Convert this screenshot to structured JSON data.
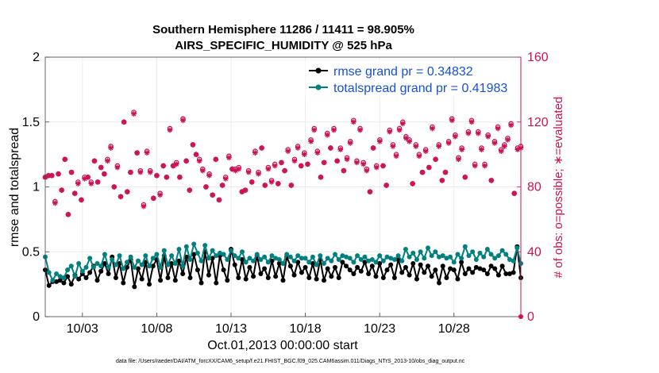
{
  "chart_data": {
    "type": "line",
    "title": "Southern Hemisphere 11286 / 11411 = 98.905%",
    "subtitle": "AIRS_SPECIFIC_HUMIDITY @ 525 hPa",
    "xlabel": "Oct.01,2013 00:00:00 start",
    "ylabel": "rmse and totalspread",
    "y2label": "# of obs: o=possible; ∗=evaluated",
    "footnote": "data file: /Users/raeder/DAI/ATM_forcXX/CAM6_setup/f.e21.FHIST_BGC.f09_025.CAM6assim.011/Diags_NTrS_2013-10/obs_diag_output.nc",
    "xlim": [
      0.5,
      32.5
    ],
    "ylim": [
      0,
      2
    ],
    "y2lim": [
      0,
      160
    ],
    "x_ticks": [
      {
        "x": 3,
        "label": "10/03"
      },
      {
        "x": 8,
        "label": "10/08"
      },
      {
        "x": 13,
        "label": "10/13"
      },
      {
        "x": 18,
        "label": "10/18"
      },
      {
        "x": 23,
        "label": "10/23"
      },
      {
        "x": 28,
        "label": "10/28"
      }
    ],
    "y_ticks": [
      "0",
      "0.5",
      "1",
      "1.5",
      "2"
    ],
    "y2_ticks": [
      "0",
      "40",
      "80",
      "120",
      "160"
    ],
    "legend_position": "top-right",
    "colors": {
      "rmse": "#000000",
      "spread": "#00807f",
      "obs": "#cc1155",
      "grid": "#ebebeb"
    },
    "series": [
      {
        "name": "rmse grand pr = 0.34832",
        "key": "rmse",
        "values": [
          0.36,
          0.24,
          0.27,
          0.27,
          0.28,
          0.26,
          0.31,
          0.25,
          0.32,
          0.29,
          0.33,
          0.3,
          0.34,
          0.39,
          0.28,
          0.35,
          0.41,
          0.33,
          0.46,
          0.3,
          0.41,
          0.26,
          0.38,
          0.44,
          0.23,
          0.37,
          0.29,
          0.42,
          0.25,
          0.39,
          0.44,
          0.28,
          0.47,
          0.3,
          0.41,
          0.28,
          0.43,
          0.33,
          0.46,
          0.3,
          0.48,
          0.36,
          0.26,
          0.5,
          0.32,
          0.45,
          0.26,
          0.47,
          0.36,
          0.28,
          0.52,
          0.4,
          0.3,
          0.44,
          0.29,
          0.38,
          0.31,
          0.47,
          0.33,
          0.37,
          0.3,
          0.43,
          0.31,
          0.41,
          0.28,
          0.46,
          0.39,
          0.32,
          0.42,
          0.34,
          0.38,
          0.3,
          0.41,
          0.29,
          0.44,
          0.28,
          0.37,
          0.31,
          0.38,
          0.3,
          0.42,
          0.39,
          0.36,
          0.33,
          0.38,
          0.35,
          0.42,
          0.33,
          0.39,
          0.31,
          0.41,
          0.3,
          0.36,
          0.4,
          0.3,
          0.44,
          0.34,
          0.38,
          0.32,
          0.41,
          0.29,
          0.4,
          0.34,
          0.39,
          0.31,
          0.36,
          0.26,
          0.39,
          0.3,
          0.37,
          0.36,
          0.29,
          0.42,
          0.33,
          0.37,
          0.34,
          0.38,
          0.37,
          0.36,
          0.33,
          0.39,
          0.37,
          0.32,
          0.39,
          0.33,
          0.33,
          0.34,
          0.54,
          0.3
        ]
      },
      {
        "name": "totalspread grand pr = 0.41983",
        "key": "spread",
        "values": [
          0.46,
          0.34,
          0.28,
          0.33,
          0.31,
          0.3,
          0.36,
          0.39,
          0.31,
          0.41,
          0.35,
          0.38,
          0.45,
          0.38,
          0.41,
          0.39,
          0.48,
          0.38,
          0.44,
          0.4,
          0.47,
          0.37,
          0.42,
          0.46,
          0.38,
          0.43,
          0.4,
          0.47,
          0.39,
          0.45,
          0.48,
          0.38,
          0.51,
          0.4,
          0.47,
          0.41,
          0.52,
          0.39,
          0.54,
          0.44,
          0.56,
          0.49,
          0.43,
          0.55,
          0.45,
          0.51,
          0.47,
          0.49,
          0.48,
          0.44,
          0.51,
          0.47,
          0.45,
          0.5,
          0.42,
          0.45,
          0.43,
          0.48,
          0.44,
          0.46,
          0.42,
          0.47,
          0.45,
          0.44,
          0.41,
          0.48,
          0.46,
          0.43,
          0.47,
          0.45,
          0.45,
          0.42,
          0.46,
          0.4,
          0.47,
          0.41,
          0.45,
          0.43,
          0.48,
          0.44,
          0.47,
          0.46,
          0.45,
          0.42,
          0.47,
          0.44,
          0.46,
          0.43,
          0.44,
          0.42,
          0.47,
          0.43,
          0.46,
          0.45,
          0.44,
          0.47,
          0.43,
          0.52,
          0.46,
          0.49,
          0.44,
          0.5,
          0.45,
          0.53,
          0.47,
          0.5,
          0.46,
          0.47,
          0.45,
          0.46,
          0.42,
          0.48,
          0.45,
          0.54,
          0.47,
          0.5,
          0.44,
          0.49,
          0.46,
          0.52,
          0.48,
          0.45,
          0.47,
          0.51,
          0.48,
          0.44,
          0.43,
          0.53,
          0.41
        ]
      },
      {
        "name": "# of obs possible",
        "key": "possible",
        "axis": "right",
        "marker": "o",
        "values": [
          86,
          87,
          87,
          71,
          88,
          78,
          97,
          63,
          89,
          76,
          83,
          72,
          86,
          86,
          83,
          96,
          83,
          92,
          88,
          97,
          105,
          80,
          93,
          74,
          120,
          77,
          89,
          126,
          101,
          90,
          69,
          102,
          90,
          73,
          87,
          76,
          93,
          86,
          116,
          93,
          95,
          86,
          122,
          96,
          78,
          106,
          100,
          97,
          91,
          80,
          88,
          75,
          97,
          72,
          81,
          86,
          99,
          91,
          91,
          92,
          77,
          78,
          90,
          83,
          102,
          89,
          104,
          81,
          92,
          84,
          94,
          82,
          95,
          90,
          103,
          81,
          97,
          105,
          93,
          101,
          94,
          109,
          116,
          102,
          86,
          95,
          113,
          104,
          116,
          96,
          104,
          90,
          98,
          108,
          121,
          96,
          116,
          95,
          91,
          77,
          104,
          93,
          109,
          93,
          81,
          115,
          106,
          100,
          116,
          120,
          111,
          109,
          82,
          106,
          100,
          89,
          103,
          92,
          117,
          97,
          106,
          84,
          89,
          108,
          122,
          112,
          98,
          104,
          86,
          114,
          121,
          94,
          114,
          104,
          94,
          112,
          84,
          108,
          117,
          103,
          106,
          110,
          119,
          76,
          104,
          105
        ]
      },
      {
        "name": "# of obs evaluated",
        "key": "evaluated",
        "axis": "right",
        "marker": "*",
        "values": [
          86,
          87,
          87,
          70,
          88,
          78,
          97,
          63,
          89,
          76,
          82,
          72,
          85,
          86,
          82,
          96,
          83,
          92,
          88,
          96,
          104,
          80,
          92,
          74,
          120,
          77,
          89,
          125,
          101,
          89,
          68,
          101,
          89,
          73,
          87,
          75,
          93,
          86,
          115,
          93,
          94,
          86,
          121,
          96,
          78,
          106,
          100,
          96,
          90,
          80,
          87,
          75,
          97,
          72,
          81,
          85,
          98,
          91,
          90,
          91,
          77,
          78,
          89,
          83,
          101,
          88,
          104,
          81,
          91,
          83,
          93,
          82,
          95,
          90,
          102,
          81,
          96,
          104,
          93,
          100,
          94,
          108,
          115,
          101,
          86,
          95,
          112,
          104,
          115,
          96,
          103,
          90,
          97,
          107,
          120,
          95,
          115,
          94,
          90,
          77,
          104,
          92,
          108,
          93,
          81,
          114,
          105,
          99,
          115,
          119,
          110,
          108,
          82,
          105,
          99,
          89,
          102,
          92,
          116,
          97,
          105,
          84,
          89,
          107,
          121,
          111,
          97,
          103,
          86,
          113,
          120,
          93,
          113,
          103,
          93,
          111,
          84,
          107,
          116,
          102,
          105,
          109,
          118,
          76,
          103,
          104
        ]
      }
    ]
  }
}
